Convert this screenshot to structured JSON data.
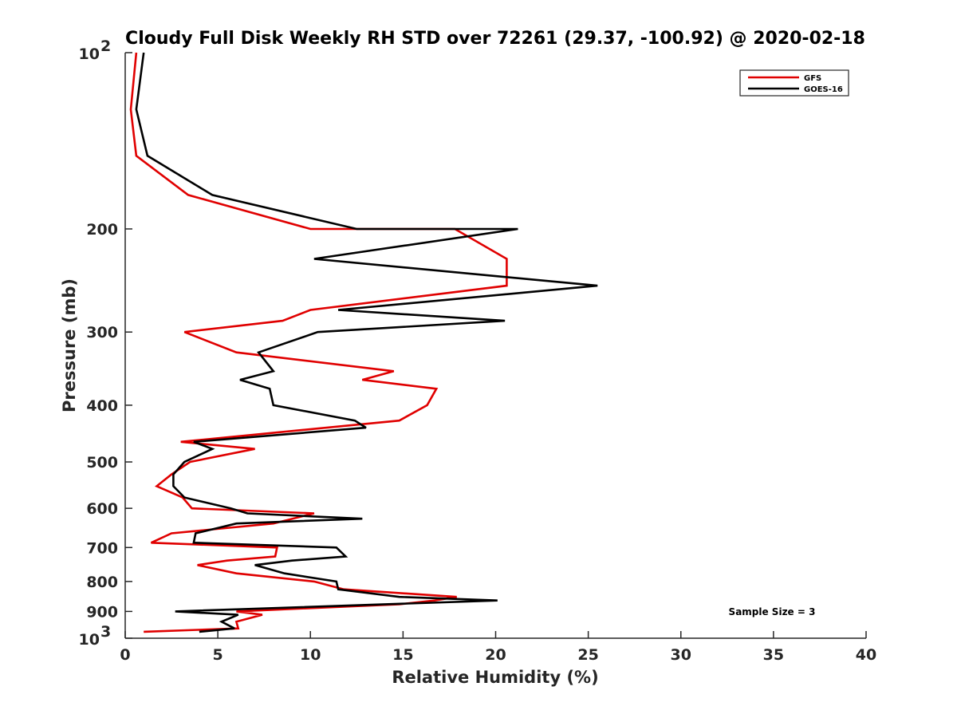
{
  "chart_data": {
    "type": "line",
    "title": "Cloudy Full Disk Weekly RH STD over 72261 (29.37, -100.92) @ 2020-02-18",
    "xlabel": "Relative Humidity (%)",
    "ylabel": "Pressure (mb)",
    "xlim": [
      0,
      40
    ],
    "ylim": [
      1000,
      100
    ],
    "yscale": "log",
    "yreversed": true,
    "grid": false,
    "legend_position": "top-right",
    "x_ticks": [
      "0",
      "5",
      "10",
      "15",
      "20",
      "25",
      "30",
      "35",
      "40"
    ],
    "y_ticks": [
      {
        "value": 100,
        "base": "10",
        "exp": "2"
      },
      {
        "value": 200,
        "label": "200"
      },
      {
        "value": 300,
        "label": "300"
      },
      {
        "value": 400,
        "label": "400"
      },
      {
        "value": 500,
        "label": "500"
      },
      {
        "value": 600,
        "label": "600"
      },
      {
        "value": 700,
        "label": "700"
      },
      {
        "value": 800,
        "label": "800"
      },
      {
        "value": 900,
        "label": "900"
      },
      {
        "value": 1000,
        "base": "10",
        "exp": "3"
      }
    ],
    "annotation": "Sample Size = 3",
    "series": [
      {
        "name": "GFS",
        "color": "#e00000",
        "points": [
          [
            0.6,
            100
          ],
          [
            0.3,
            125
          ],
          [
            0.6,
            150
          ],
          [
            3.4,
            175
          ],
          [
            10,
            200
          ],
          [
            17.8,
            200
          ],
          [
            20.6,
            225
          ],
          [
            20.6,
            250
          ],
          [
            10,
            275
          ],
          [
            8.5,
            287
          ],
          [
            3.2,
            300
          ],
          [
            6,
            325
          ],
          [
            14.5,
            350
          ],
          [
            12.8,
            362
          ],
          [
            16.8,
            375
          ],
          [
            16.3,
            400
          ],
          [
            14.8,
            425
          ],
          [
            3.0,
            462
          ],
          [
            7.0,
            475
          ],
          [
            3.5,
            500
          ],
          [
            2.5,
            525
          ],
          [
            1.7,
            550
          ],
          [
            3.1,
            575
          ],
          [
            3.6,
            600
          ],
          [
            10.2,
            612
          ],
          [
            8.0,
            637
          ],
          [
            2.5,
            662
          ],
          [
            1.4,
            687
          ],
          [
            8.2,
            700
          ],
          [
            8.1,
            725
          ],
          [
            5.5,
            737
          ],
          [
            3.9,
            750
          ],
          [
            6.0,
            775
          ],
          [
            10.2,
            800
          ],
          [
            11.8,
            825
          ],
          [
            17.9,
            850
          ],
          [
            16.7,
            862
          ],
          [
            14.8,
            875
          ],
          [
            6.0,
            900
          ],
          [
            7.4,
            912
          ],
          [
            6.0,
            937
          ],
          [
            6.1,
            962
          ],
          [
            1.0,
            975
          ]
        ]
      },
      {
        "name": "GOES-16",
        "color": "#000000",
        "points": [
          [
            1.0,
            100
          ],
          [
            0.6,
            125
          ],
          [
            1.2,
            150
          ],
          [
            4.7,
            175
          ],
          [
            12.5,
            200
          ],
          [
            21.2,
            200
          ],
          [
            10.2,
            225
          ],
          [
            25.5,
            250
          ],
          [
            11.5,
            275
          ],
          [
            20.5,
            287
          ],
          [
            10.4,
            300
          ],
          [
            7.2,
            325
          ],
          [
            8.0,
            350
          ],
          [
            6.2,
            362
          ],
          [
            7.8,
            375
          ],
          [
            8.0,
            400
          ],
          [
            12.4,
            425
          ],
          [
            13.0,
            437
          ],
          [
            3.7,
            462
          ],
          [
            4.7,
            475
          ],
          [
            3.2,
            500
          ],
          [
            2.6,
            525
          ],
          [
            2.6,
            550
          ],
          [
            3.2,
            575
          ],
          [
            5.7,
            600
          ],
          [
            6.6,
            612
          ],
          [
            12.8,
            625
          ],
          [
            6.0,
            637
          ],
          [
            3.8,
            662
          ],
          [
            3.7,
            687
          ],
          [
            11.4,
            700
          ],
          [
            11.9,
            725
          ],
          [
            9.0,
            737
          ],
          [
            7.0,
            750
          ],
          [
            8.6,
            775
          ],
          [
            11.4,
            800
          ],
          [
            11.5,
            825
          ],
          [
            14.8,
            850
          ],
          [
            20.1,
            862
          ],
          [
            2.7,
            900
          ],
          [
            6.1,
            912
          ],
          [
            5.2,
            937
          ],
          [
            5.9,
            962
          ],
          [
            4.0,
            975
          ]
        ]
      }
    ]
  }
}
